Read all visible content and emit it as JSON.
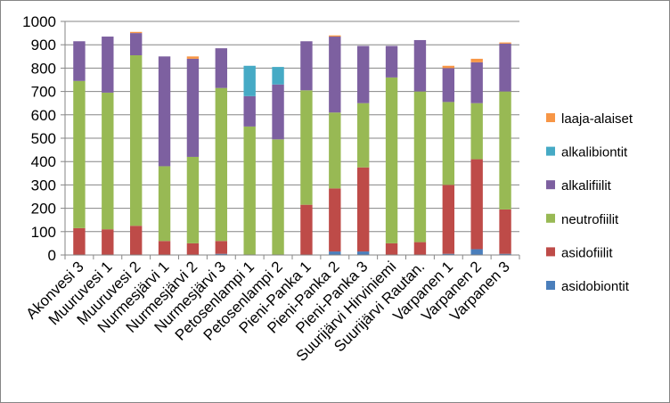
{
  "chart_data": {
    "type": "bar",
    "stacked": true,
    "title": "",
    "xlabel": "",
    "ylabel": "",
    "ylim": [
      0,
      1000
    ],
    "yticks": [
      "0",
      "100",
      "200",
      "300",
      "400",
      "500",
      "600",
      "700",
      "800",
      "900",
      "1000"
    ],
    "grid": "horizontal",
    "legend_position": "right",
    "categories": [
      "Akonvesi 3",
      "Muuruvesi 1",
      "Muuruvesi 2",
      "Nurmesjärvi 1",
      "Nurmesjärvi 2",
      "Nurmesjärvi 3",
      "Petosenlampi 1",
      "Petosenlampi 2",
      "Pieni-Panka 1",
      "Pieni-Panka 2",
      "Pieni-Panka 3",
      "Suurijärvi Hirviniemi",
      "Suurijärvi Rautan.",
      "Varpanen 1",
      "Varpanen 2",
      "Varpanen 3"
    ],
    "series": [
      {
        "name": "asidobiontit",
        "color": "#4a7ebb",
        "values": [
          0,
          0,
          0,
          0,
          0,
          5,
          0,
          0,
          0,
          15,
          15,
          0,
          0,
          5,
          25,
          5
        ]
      },
      {
        "name": "asidofiilit",
        "color": "#be4b48",
        "values": [
          115,
          110,
          125,
          60,
          50,
          55,
          0,
          0,
          215,
          270,
          360,
          50,
          55,
          295,
          385,
          190
        ]
      },
      {
        "name": "neutrofiilit",
        "color": "#98b954",
        "values": [
          630,
          585,
          730,
          320,
          370,
          655,
          550,
          495,
          490,
          325,
          275,
          710,
          645,
          355,
          240,
          505
        ]
      },
      {
        "name": "alkalifiilit",
        "color": "#7d60a0",
        "values": [
          170,
          240,
          95,
          470,
          420,
          170,
          130,
          235,
          210,
          325,
          245,
          135,
          220,
          145,
          175,
          205
        ]
      },
      {
        "name": "alkalibiontit",
        "color": "#46aac5",
        "values": [
          0,
          0,
          0,
          0,
          0,
          0,
          130,
          75,
          0,
          0,
          0,
          0,
          0,
          0,
          0,
          0
        ]
      },
      {
        "name": "laaja-alaiset",
        "color": "#f79646",
        "values": [
          0,
          0,
          5,
          0,
          10,
          0,
          0,
          0,
          0,
          5,
          0,
          0,
          0,
          10,
          15,
          5
        ]
      }
    ]
  }
}
